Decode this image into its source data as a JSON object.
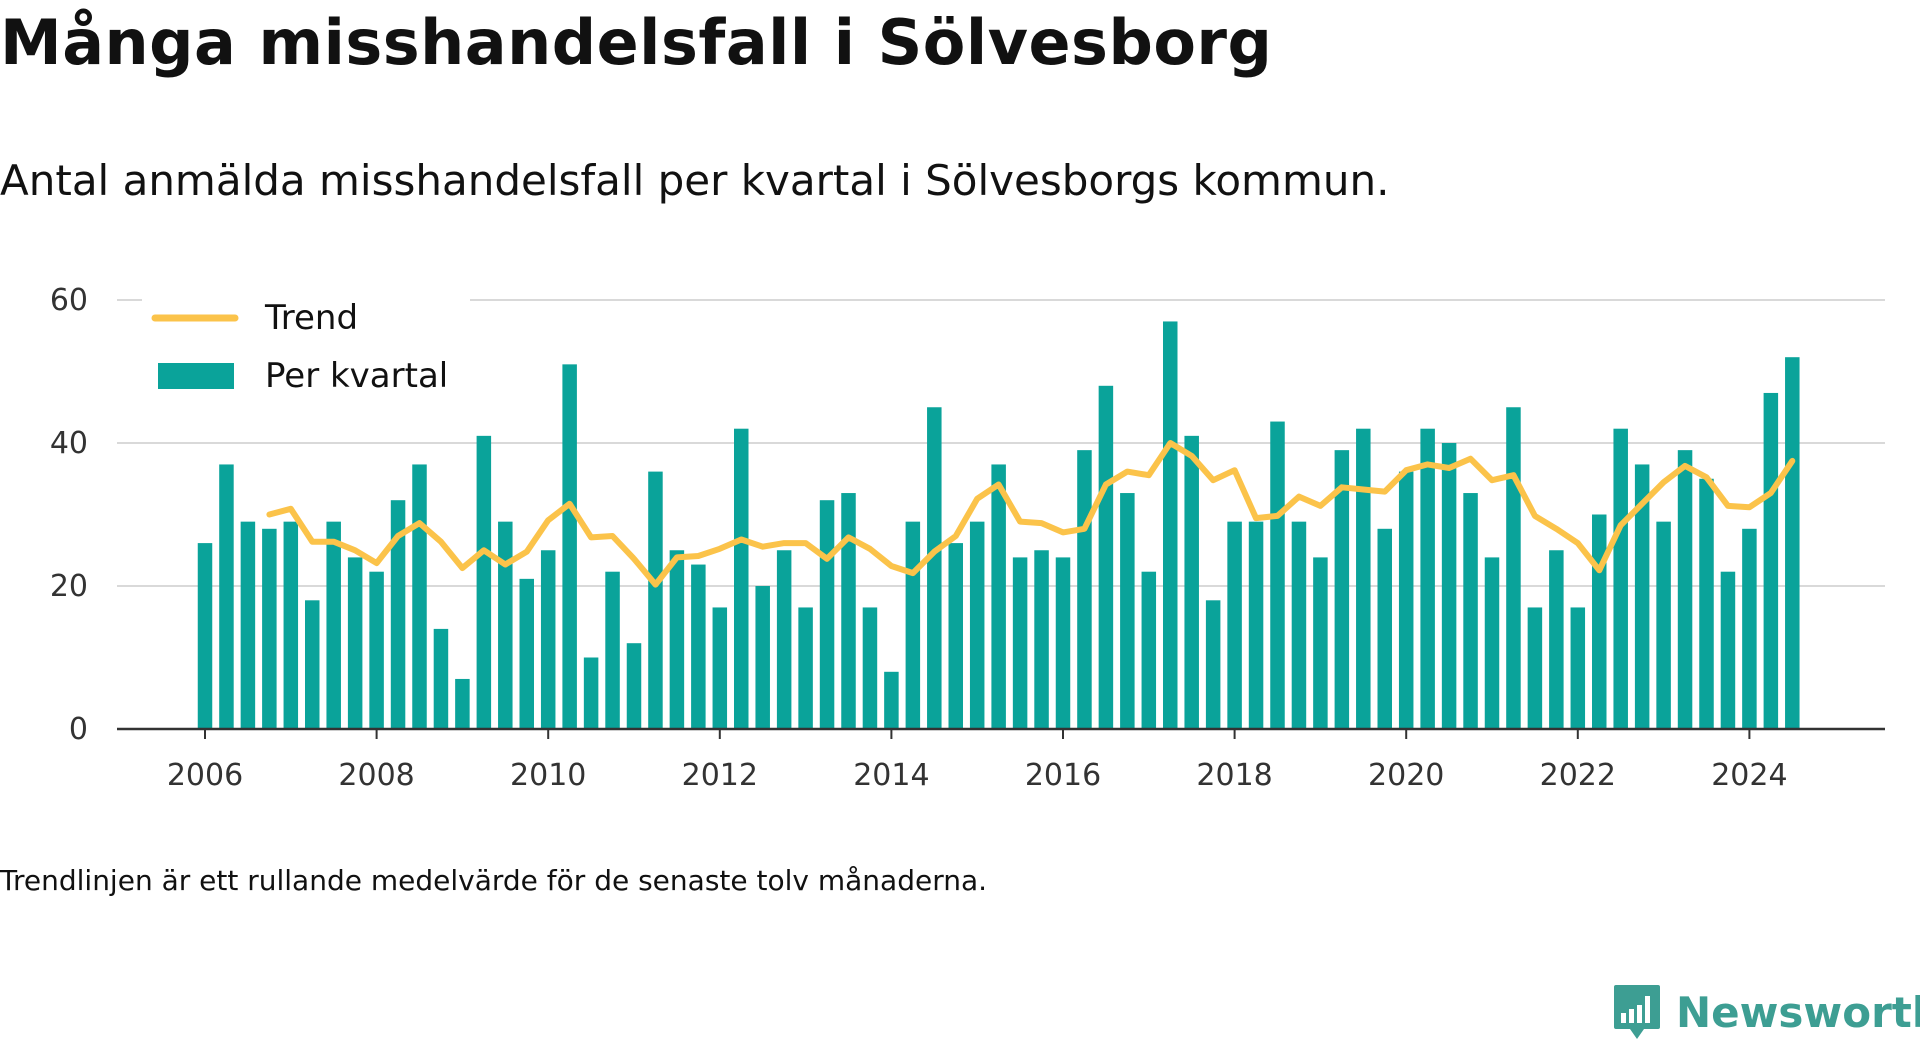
{
  "title": "Många misshandelsfall i Sölvesborg",
  "subtitle": "Antal anmälda misshandelsfall per kvartal i Sölvesborgs kommun.",
  "footnote": "Trendlinjen är ett rullande medelvärde för de senaste tolv månaderna.",
  "brand": {
    "name": "Newsworthy",
    "icon": "newsworthy-logo-icon",
    "color": "#3d9e93"
  },
  "chart_data": {
    "type": "bar",
    "ylim": [
      0,
      60
    ],
    "yticks": [
      0,
      20,
      40,
      60
    ],
    "xticks": [
      "2006",
      "2008",
      "2010",
      "2012",
      "2014",
      "2016",
      "2018",
      "2020",
      "2022",
      "2024"
    ],
    "xlim": [
      2006.0,
      2025.75
    ],
    "grid": true,
    "legend_position": "top-left",
    "colors": {
      "bars": "#0aa39a",
      "trend": "#fbc34a",
      "grid": "#d9d9d9",
      "axis": "#333333"
    },
    "series": [
      {
        "name": "Per kvartal",
        "kind": "bar",
        "x": [
          "2006-Q1",
          "2006-Q2",
          "2006-Q3",
          "2006-Q4",
          "2007-Q1",
          "2007-Q2",
          "2007-Q3",
          "2007-Q4",
          "2008-Q1",
          "2008-Q2",
          "2008-Q3",
          "2008-Q4",
          "2009-Q1",
          "2009-Q2",
          "2009-Q3",
          "2009-Q4",
          "2010-Q1",
          "2010-Q2",
          "2010-Q3",
          "2010-Q4",
          "2011-Q1",
          "2011-Q2",
          "2011-Q3",
          "2011-Q4",
          "2012-Q1",
          "2012-Q2",
          "2012-Q3",
          "2012-Q4",
          "2013-Q1",
          "2013-Q2",
          "2013-Q3",
          "2013-Q4",
          "2014-Q1",
          "2014-Q2",
          "2014-Q3",
          "2014-Q4",
          "2015-Q1",
          "2015-Q2",
          "2015-Q3",
          "2015-Q4",
          "2016-Q1",
          "2016-Q2",
          "2016-Q3",
          "2016-Q4",
          "2017-Q1",
          "2017-Q2",
          "2017-Q3",
          "2017-Q4",
          "2018-Q1",
          "2018-Q2",
          "2018-Q3",
          "2018-Q4",
          "2019-Q1",
          "2019-Q2",
          "2019-Q3",
          "2019-Q4",
          "2020-Q1",
          "2020-Q2",
          "2020-Q3",
          "2020-Q4",
          "2021-Q1",
          "2021-Q2",
          "2021-Q3",
          "2021-Q4",
          "2022-Q1",
          "2022-Q2",
          "2022-Q3",
          "2022-Q4",
          "2023-Q1",
          "2023-Q2",
          "2023-Q3",
          "2023-Q4",
          "2024-Q1",
          "2024-Q2",
          "2024-Q3"
        ],
        "values": [
          26,
          37,
          29,
          28,
          29,
          18,
          29,
          24,
          22,
          32,
          37,
          14,
          7,
          41,
          29,
          21,
          25,
          51,
          10,
          22,
          12,
          36,
          25,
          23,
          17,
          42,
          20,
          25,
          17,
          32,
          33,
          17,
          8,
          29,
          45,
          26,
          29,
          37,
          24,
          25,
          24,
          39,
          48,
          33,
          22,
          57,
          41,
          18,
          29,
          29,
          43,
          29,
          24,
          39,
          42,
          28,
          36,
          42,
          40,
          33,
          24,
          45,
          17,
          25,
          17,
          30,
          42,
          37,
          29,
          39,
          35,
          22,
          28,
          47,
          52
        ]
      },
      {
        "name": "Trend",
        "kind": "line",
        "x": [
          "2006-Q4",
          "2007-Q1",
          "2007-Q2",
          "2007-Q3",
          "2007-Q4",
          "2008-Q1",
          "2008-Q2",
          "2008-Q3",
          "2008-Q4",
          "2009-Q1",
          "2009-Q2",
          "2009-Q3",
          "2009-Q4",
          "2010-Q1",
          "2010-Q2",
          "2010-Q3",
          "2010-Q4",
          "2011-Q1",
          "2011-Q2",
          "2011-Q3",
          "2011-Q4",
          "2012-Q1",
          "2012-Q2",
          "2012-Q3",
          "2012-Q4",
          "2013-Q1",
          "2013-Q2",
          "2013-Q3",
          "2013-Q4",
          "2014-Q1",
          "2014-Q2",
          "2014-Q3",
          "2014-Q4",
          "2015-Q1",
          "2015-Q2",
          "2015-Q3",
          "2015-Q4",
          "2016-Q1",
          "2016-Q2",
          "2016-Q3",
          "2016-Q4",
          "2017-Q1",
          "2017-Q2",
          "2017-Q3",
          "2017-Q4",
          "2018-Q1",
          "2018-Q2",
          "2018-Q3",
          "2018-Q4",
          "2019-Q1",
          "2019-Q2",
          "2019-Q3",
          "2019-Q4",
          "2020-Q1",
          "2020-Q2",
          "2020-Q3",
          "2020-Q4",
          "2021-Q1",
          "2021-Q2",
          "2021-Q3",
          "2021-Q4",
          "2022-Q1",
          "2022-Q2",
          "2022-Q3",
          "2022-Q4",
          "2023-Q1",
          "2023-Q2",
          "2023-Q3",
          "2023-Q4",
          "2024-Q1",
          "2024-Q2",
          "2024-Q3"
        ],
        "values": [
          30,
          30.8,
          26.2,
          26.2,
          25,
          23.2,
          27,
          28.8,
          26.2,
          22.5,
          25,
          23,
          24.8,
          29.2,
          31.5,
          26.8,
          27,
          23.8,
          20.2,
          24,
          24.2,
          25.2,
          26.5,
          25.5,
          26,
          26,
          23.8,
          26.8,
          25.2,
          22.8,
          21.8,
          24.8,
          27,
          32.2,
          34.2,
          29,
          28.8,
          27.5,
          28,
          34.2,
          36,
          35.5,
          40,
          38.2,
          34.8,
          36.2,
          29.5,
          29.8,
          32.5,
          31.2,
          33.8,
          33.5,
          33.2,
          36.2,
          37,
          36.5,
          37.8,
          34.8,
          35.5,
          29.8,
          28,
          26,
          22.2,
          28.5,
          31.5,
          34.5,
          36.8,
          35.2,
          31.2,
          31,
          33,
          37.5
        ]
      }
    ]
  }
}
